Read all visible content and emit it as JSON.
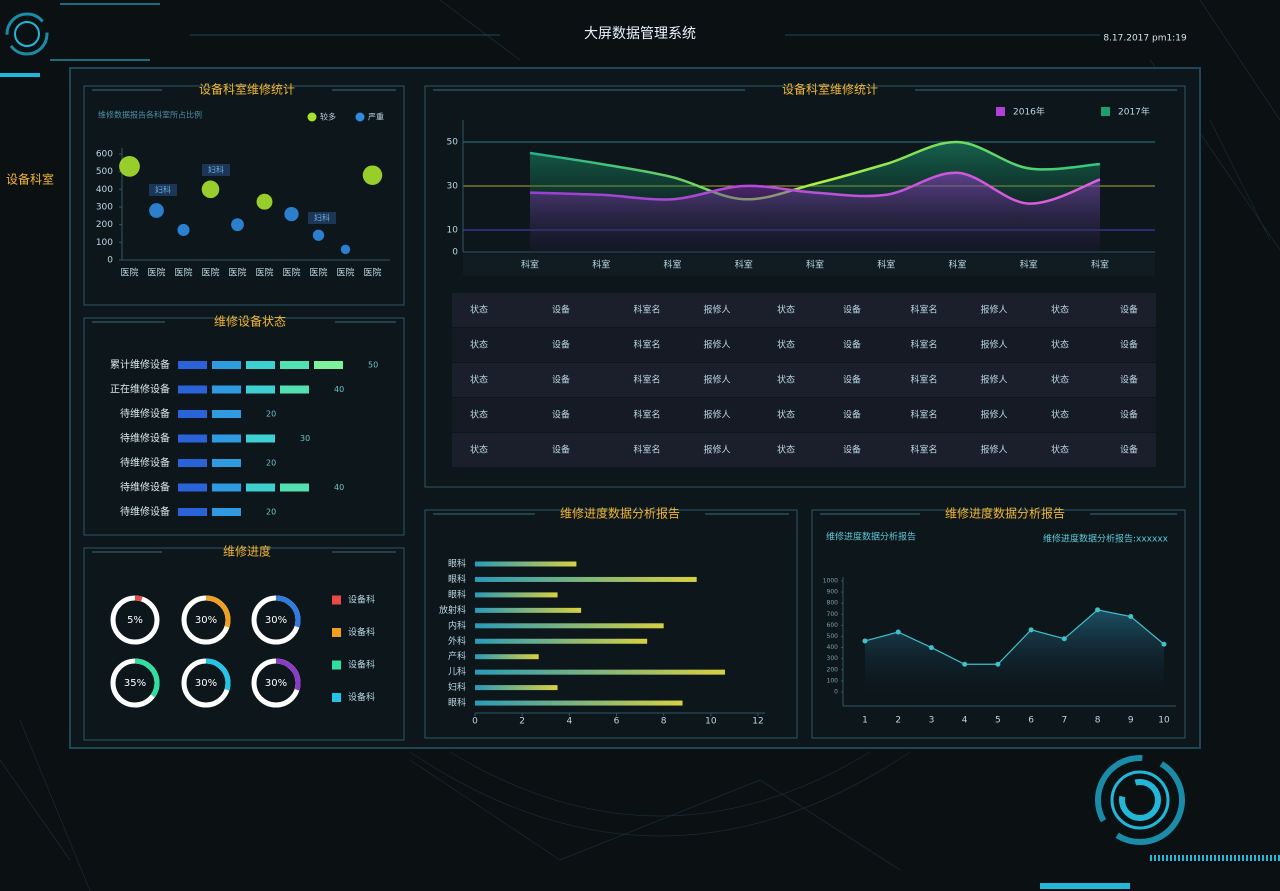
{
  "header": {
    "title": "大屏数据管理系统",
    "datetime": "8.17.2017  pm1:19"
  },
  "side_label": "设备科室",
  "chart_data": [
    {
      "type": "scatter",
      "title": "设备科室维修统计",
      "subtitle": "维修数据报告各科室所占比例",
      "categories": [
        "医院",
        "医院",
        "医院",
        "医院",
        "医院",
        "医院",
        "医院",
        "医院",
        "医院",
        "医院"
      ],
      "series": [
        {
          "name": "较多",
          "color": "#a6e22e",
          "values": [
            530,
            null,
            null,
            400,
            null,
            330,
            null,
            null,
            null,
            480
          ]
        },
        {
          "name": "严重",
          "color": "#2f8be0",
          "values": [
            null,
            280,
            170,
            null,
            200,
            null,
            260,
            140,
            60,
            null
          ]
        }
      ],
      "annotations": [
        "妇科",
        "妇科",
        "妇科"
      ],
      "ylim": [
        0,
        600
      ],
      "yticks": [
        0,
        100,
        200,
        300,
        400,
        500,
        600
      ]
    },
    {
      "type": "area",
      "title": "设备科室维修统计",
      "categories": [
        "科室",
        "科室",
        "科室",
        "科室",
        "科室",
        "科室",
        "科室",
        "科室",
        "科室"
      ],
      "series": [
        {
          "name": "2016年",
          "color": "#b040d8",
          "values": [
            27,
            26,
            24,
            30,
            27,
            26,
            36,
            22,
            33
          ]
        },
        {
          "name": "2017年",
          "color": "#1f9e6e",
          "values": [
            45,
            40,
            34,
            24,
            31,
            40,
            50,
            38,
            40
          ]
        }
      ],
      "ylim": [
        0,
        60
      ],
      "yticks": [
        0,
        10,
        30,
        50
      ]
    },
    {
      "type": "bar",
      "segmented": true,
      "title": "维修设备状态",
      "categories": [
        "累计维修设备",
        "正在维修设备",
        "待维修设备",
        "待维修设备",
        "待维修设备",
        "待维修设备",
        "待维修设备"
      ],
      "values": [
        50,
        40,
        20,
        30,
        20,
        40,
        20
      ]
    },
    {
      "type": "donut",
      "title": "维修进度",
      "values": [
        5,
        30,
        30,
        35,
        30,
        30
      ],
      "value_labels": [
        "5%",
        "30%",
        "30%",
        "35%",
        "30%",
        "30%"
      ],
      "colors": [
        "#e84a4a",
        "#f0a020",
        "#2f7be0",
        "#2ee0a0",
        "#22c4e8",
        "#8a3cc8"
      ],
      "legend": [
        {
          "name": "设备科",
          "color": "#e84a4a"
        },
        {
          "name": "设备科",
          "color": "#f0a020"
        },
        {
          "name": "设备科",
          "color": "#2ee0a0"
        },
        {
          "name": "设备科",
          "color": "#22c4e8"
        }
      ]
    },
    {
      "type": "bar",
      "segmented": false,
      "title": "维修进度数据分析报告",
      "categories": [
        "眼科",
        "眼科",
        "眼科",
        "放射科",
        "内科",
        "外科",
        "产科",
        "儿科",
        "妇科",
        "眼科"
      ],
      "values": [
        4.3,
        9.4,
        3.5,
        4.5,
        8.0,
        7.3,
        2.7,
        10.6,
        3.5,
        8.8
      ],
      "xlim": [
        0,
        12
      ],
      "xticks": [
        0,
        2,
        4,
        6,
        8,
        10,
        12
      ]
    },
    {
      "type": "line",
      "title": "维修进度数据分析报告",
      "subtitle": "维修进度数据分析报告",
      "annotation": "维修进度数据分析报告:xxxxxx",
      "x": [
        1,
        2,
        3,
        4,
        5,
        6,
        7,
        8,
        9,
        10
      ],
      "values": [
        460,
        540,
        400,
        250,
        250,
        560,
        480,
        740,
        680,
        430
      ],
      "color": "#3fc1c9",
      "xlim": [
        1,
        10
      ],
      "ylim": [
        0,
        1000
      ],
      "yticks": [
        0,
        100,
        200,
        300,
        400,
        500,
        600,
        700,
        800,
        900,
        1000
      ]
    }
  ],
  "table": {
    "rows": [
      [
        "状态",
        "设备",
        "科室名",
        "报修人",
        "状态",
        "设备",
        "科室名",
        "报修人",
        "状态",
        "设备"
      ],
      [
        "状态",
        "设备",
        "科室名",
        "报修人",
        "状态",
        "设备",
        "科室名",
        "报修人",
        "状态",
        "设备"
      ],
      [
        "状态",
        "设备",
        "科室名",
        "报修人",
        "状态",
        "设备",
        "科室名",
        "报修人",
        "状态",
        "设备"
      ],
      [
        "状态",
        "设备",
        "科室名",
        "报修人",
        "状态",
        "设备",
        "科室名",
        "报修人",
        "状态",
        "设备"
      ],
      [
        "状态",
        "设备",
        "科室名",
        "报修人",
        "状态",
        "设备",
        "科室名",
        "报修人",
        "状态",
        "设备"
      ]
    ]
  }
}
